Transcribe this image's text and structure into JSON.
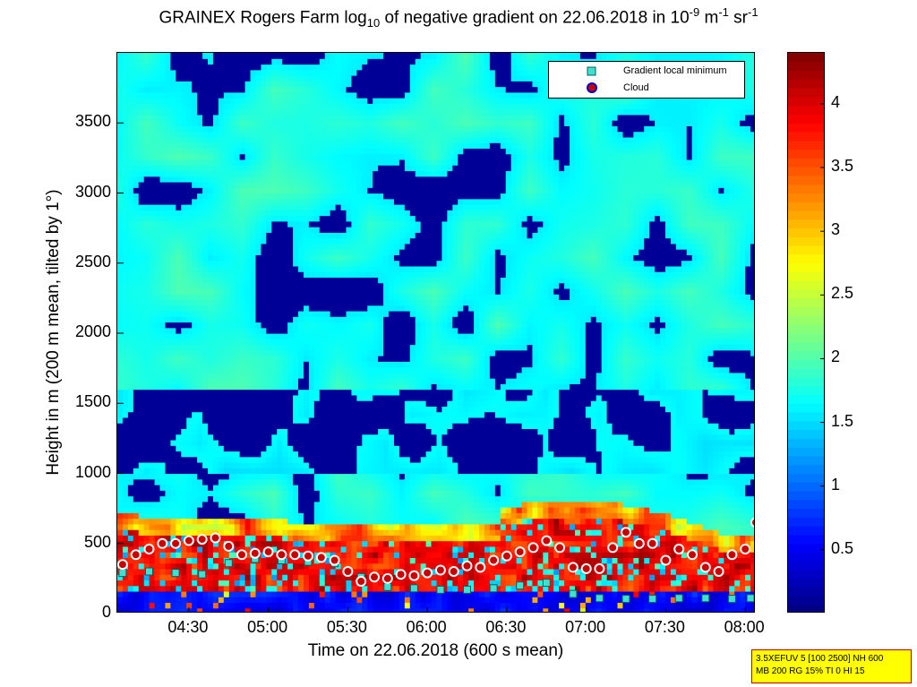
{
  "chart_data": {
    "type": "heatmap",
    "title": {
      "pre": "GRAINEX Rogers Farm log",
      "sub": "10",
      "mid1": " of negative gradient on 22.06.2018 in 10",
      "sup1": "-9",
      "mid2": " m",
      "sup2": "-1",
      "mid3": " sr",
      "sup3": "-1"
    },
    "xlabel": "Time on 22.06.2018 (600 s mean)",
    "ylabel": "Height in m (200 m mean, tilted by 1°)",
    "x_ticks": [
      "04:30",
      "05:00",
      "05:30",
      "06:00",
      "06:30",
      "07:00",
      "07:30",
      "08:00"
    ],
    "x_range": [
      "04:03",
      "08:04"
    ],
    "y_ticks": [
      0,
      500,
      1000,
      1500,
      2000,
      2500,
      3000,
      3500
    ],
    "ylim": [
      0,
      4000
    ],
    "colorbar": {
      "ticks": [
        "0.5",
        "1",
        "1.5",
        "2",
        "2.5",
        "3",
        "3.5",
        "4"
      ],
      "range": [
        0,
        4.4
      ],
      "colormap": "jet"
    },
    "legend": {
      "placement": "top-right",
      "entries": [
        {
          "label": "Gradient local minimum",
          "marker": "square",
          "color": "#40e0d0"
        },
        {
          "label": "Cloud",
          "marker": "circle",
          "color": "#c80000",
          "edge": "#0000c8"
        }
      ]
    },
    "series": [
      {
        "name": "Gradient local minimum",
        "x": [
          "04:05",
          "04:15",
          "04:25",
          "04:35",
          "04:45",
          "04:55",
          "05:05",
          "05:15",
          "05:25",
          "05:35",
          "05:45",
          "05:55",
          "06:05",
          "06:15",
          "06:25",
          "06:35",
          "06:45",
          "06:55",
          "07:05",
          "07:15",
          "07:25",
          "07:35",
          "07:45",
          "07:55",
          "08:02"
        ],
        "y": [
          290,
          300,
          290,
          280,
          360,
          390,
          380,
          370,
          360,
          260,
          190,
          180,
          170,
          170,
          180,
          200,
          220,
          140,
          110,
          105,
          105,
          110,
          110,
          105,
          110
        ]
      },
      {
        "name": "Cloud",
        "x": [
          "04:05",
          "04:10",
          "04:15",
          "04:20",
          "04:25",
          "04:30",
          "04:35",
          "04:40",
          "04:45",
          "04:50",
          "04:55",
          "05:00",
          "05:05",
          "05:10",
          "05:15",
          "05:20",
          "05:25",
          "05:30",
          "05:35",
          "05:40",
          "05:45",
          "05:50",
          "05:55",
          "06:00",
          "06:05",
          "06:10",
          "06:15",
          "06:20",
          "06:25",
          "06:30",
          "06:35",
          "06:40",
          "06:45",
          "06:50",
          "06:55",
          "07:00",
          "07:05",
          "07:10",
          "07:15",
          "07:20",
          "07:25",
          "07:30",
          "07:35",
          "07:40",
          "07:45",
          "07:50",
          "07:55",
          "08:00",
          "08:04"
        ],
        "y": [
          350,
          420,
          460,
          500,
          500,
          520,
          530,
          540,
          480,
          420,
          430,
          440,
          420,
          420,
          410,
          400,
          380,
          300,
          230,
          260,
          250,
          280,
          270,
          290,
          310,
          300,
          340,
          330,
          380,
          410,
          440,
          470,
          520,
          470,
          330,
          320,
          320,
          470,
          580,
          500,
          500,
          380,
          460,
          420,
          330,
          300,
          420,
          460,
          650
        ]
      }
    ],
    "heatmap_summary": {
      "boundary_layer_top_m": 700,
      "cloud_layer_m": [
        1000,
        1600
      ],
      "background_value": 1.7
    }
  },
  "info_box": {
    "line1": "3.5XEFUV 5 [100 2500] NH 600",
    "line2": "MB 200 RG 15% TI 0 HI 15"
  }
}
